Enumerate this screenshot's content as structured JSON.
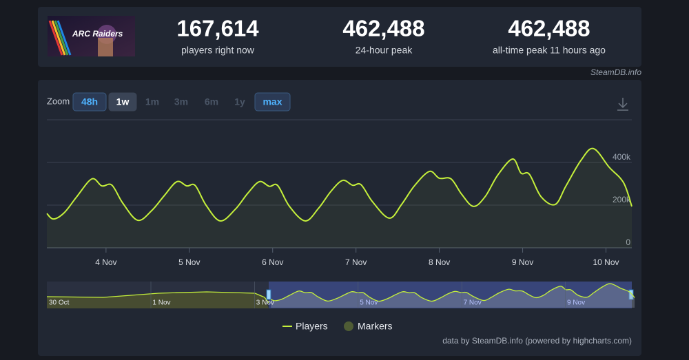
{
  "header": {
    "game_logo": "ARC Raiders",
    "stats": [
      {
        "value": "167,614",
        "label": "players right now"
      },
      {
        "value": "462,488",
        "label": "24-hour peak"
      },
      {
        "value": "462,488",
        "label": "all-time peak 11 hours ago"
      }
    ],
    "credit": "SteamDB.info"
  },
  "chart_data": {
    "type": "line",
    "zoom": {
      "label": "Zoom",
      "options": [
        "48h",
        "1w",
        "1m",
        "3m",
        "6m",
        "1y",
        "max"
      ]
    },
    "x": [
      3.29,
      3.37,
      3.5,
      3.65,
      3.83,
      3.95,
      4.07,
      4.2,
      4.38,
      4.55,
      4.7,
      4.85,
      4.97,
      5.07,
      5.2,
      5.37,
      5.55,
      5.7,
      5.84,
      5.96,
      6.06,
      6.2,
      6.39,
      6.55,
      6.7,
      6.84,
      6.96,
      7.06,
      7.2,
      7.4,
      7.55,
      7.7,
      7.88,
      8.0,
      8.14,
      8.27,
      8.41,
      8.55,
      8.7,
      8.88,
      8.98,
      9.08,
      9.22,
      9.39,
      9.52,
      9.7,
      9.85,
      10.04,
      10.21,
      10.31
    ],
    "series": [
      {
        "name": "Players",
        "color": "#c5f03b",
        "values": [
          161000,
          135000,
          165000,
          240000,
          323000,
          290000,
          294000,
          210000,
          129000,
          175000,
          245000,
          310000,
          290000,
          292000,
          200000,
          126000,
          180000,
          255000,
          310000,
          288000,
          292000,
          195000,
          126000,
          185000,
          265000,
          316000,
          293000,
          296000,
          215000,
          139000,
          205000,
          290000,
          358000,
          326000,
          323000,
          250000,
          194000,
          240000,
          340000,
          416000,
          350000,
          345000,
          240000,
          203000,
          290000,
          410000,
          465000,
          377000,
          306000,
          194000
        ]
      }
    ],
    "markers": {
      "name": "Markers",
      "color": "#4f5c35"
    },
    "xlim": [
      3.29,
      10.31
    ],
    "xticks": [
      {
        "value": 4,
        "label": "4 Nov"
      },
      {
        "value": 5,
        "label": "5 Nov"
      },
      {
        "value": 6,
        "label": "6 Nov"
      },
      {
        "value": 7,
        "label": "7 Nov"
      },
      {
        "value": 8,
        "label": "8 Nov"
      },
      {
        "value": 9,
        "label": "9 Nov"
      },
      {
        "value": 10,
        "label": "10 Nov"
      }
    ],
    "ylim": [
      0,
      600000
    ],
    "yticks": [
      0,
      {
        "value": 200000,
        "label": "200k"
      },
      {
        "value": 400000,
        "label": "400k"
      }
    ],
    "grid": true,
    "navigator": {
      "labels": [
        "30 Oct",
        "1 Nov",
        "3 Nov",
        "5 Nov",
        "7 Nov",
        "9 Nov"
      ]
    },
    "credits": "data by SteamDB.info (powered by highcharts.com)"
  }
}
